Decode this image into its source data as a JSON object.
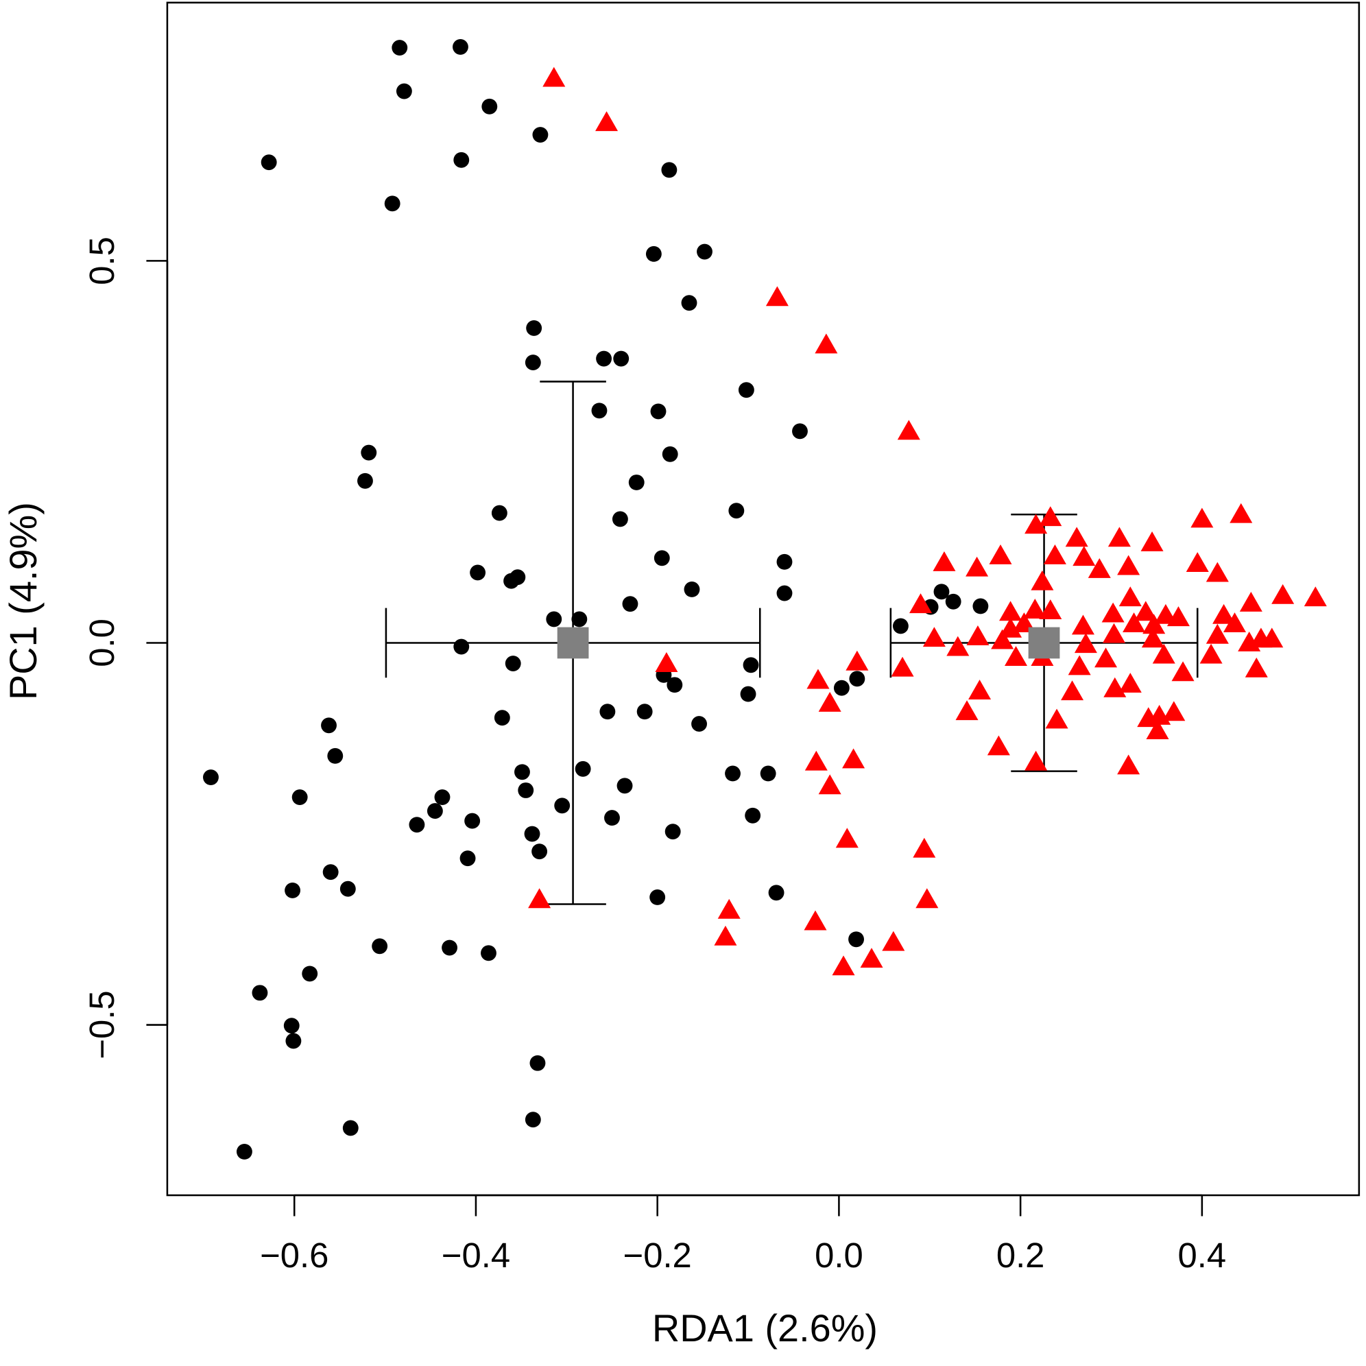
{
  "chart_data": {
    "type": "scatter",
    "xlabel": "RDA1 (2.6%)",
    "ylabel": "PC1 (4.9%)",
    "xlim": [
      -0.74,
      0.573
    ],
    "ylim": [
      -0.723,
      0.838
    ],
    "xticks": [
      {
        "value": -0.6,
        "label": "−0.6"
      },
      {
        "value": -0.4,
        "label": "−0.4"
      },
      {
        "value": -0.2,
        "label": "−0.2"
      },
      {
        "value": 0.0,
        "label": "0.0"
      },
      0.2,
      0.4
    ],
    "yticks": [
      {
        "value": -0.5,
        "label": "−0.5"
      },
      {
        "value": 0.0,
        "label": "0.0"
      },
      0.5
    ],
    "grid": false,
    "series": [
      {
        "color": "#000000",
        "marker": "circle",
        "x": [
          -0.484,
          -0.417,
          -0.479,
          -0.385,
          -0.329,
          -0.628,
          -0.416,
          -0.187,
          -0.492,
          -0.204,
          -0.148,
          -0.165,
          -0.336,
          -0.337,
          -0.259,
          -0.24,
          -0.102,
          -0.264,
          -0.199,
          -0.043,
          -0.518,
          -0.186,
          -0.522,
          -0.223,
          -0.374,
          -0.113,
          -0.241,
          -0.195,
          -0.06,
          -0.398,
          -0.361,
          -0.354,
          -0.162,
          -0.06,
          -0.23,
          -0.314,
          -0.286,
          0.068,
          0.101,
          0.113,
          0.126,
          0.156,
          -0.416,
          -0.359,
          -0.097,
          -0.193,
          -0.181,
          0.003,
          0.02,
          -0.1,
          -0.371,
          -0.255,
          -0.214,
          -0.154,
          -0.562,
          -0.555,
          -0.692,
          -0.349,
          -0.282,
          -0.117,
          -0.078,
          -0.345,
          -0.437,
          -0.594,
          -0.236,
          -0.305,
          -0.445,
          -0.465,
          -0.404,
          -0.095,
          -0.25,
          -0.338,
          -0.183,
          -0.33,
          -0.409,
          -0.56,
          -0.602,
          -0.541,
          -0.069,
          -0.2,
          0.019,
          -0.506,
          -0.429,
          -0.386,
          -0.583,
          -0.638,
          -0.603,
          -0.601,
          -0.332,
          -0.538,
          -0.337,
          -0.655
        ],
        "y": [
          0.779,
          0.78,
          0.722,
          0.702,
          0.665,
          0.629,
          0.632,
          0.619,
          0.575,
          0.509,
          0.512,
          0.445,
          0.412,
          0.367,
          0.372,
          0.372,
          0.331,
          0.304,
          0.303,
          0.277,
          0.249,
          0.247,
          0.212,
          0.21,
          0.17,
          0.173,
          0.162,
          0.111,
          0.106,
          0.092,
          0.081,
          0.086,
          0.07,
          0.065,
          0.051,
          0.031,
          0.031,
          0.022,
          0.047,
          0.067,
          0.054,
          0.048,
          -0.005,
          -0.027,
          -0.029,
          -0.042,
          -0.055,
          -0.059,
          -0.047,
          -0.067,
          -0.098,
          -0.09,
          -0.09,
          -0.106,
          -0.108,
          -0.148,
          -0.176,
          -0.169,
          -0.165,
          -0.171,
          -0.171,
          -0.193,
          -0.202,
          -0.202,
          -0.187,
          -0.213,
          -0.22,
          -0.238,
          -0.233,
          -0.226,
          -0.229,
          -0.25,
          -0.247,
          -0.273,
          -0.282,
          -0.3,
          -0.324,
          -0.322,
          -0.327,
          -0.333,
          -0.388,
          -0.397,
          -0.399,
          -0.406,
          -0.433,
          -0.458,
          -0.501,
          -0.521,
          -0.55,
          -0.635,
          -0.624,
          -0.666
        ]
      },
      {
        "color": "#ff0000",
        "marker": "triangle",
        "x": [
          -0.314,
          -0.256,
          -0.068,
          -0.014,
          0.077,
          0.217,
          0.233,
          0.4,
          0.443,
          0.345,
          0.262,
          0.309,
          0.238,
          0.27,
          0.319,
          0.116,
          0.152,
          0.178,
          0.224,
          0.287,
          0.395,
          0.417,
          0.321,
          0.454,
          0.489,
          0.525,
          0.09,
          0.189,
          0.216,
          0.233,
          0.338,
          0.36,
          0.374,
          0.302,
          0.424,
          0.189,
          0.204,
          0.269,
          0.325,
          0.347,
          0.105,
          0.131,
          0.153,
          0.18,
          0.272,
          0.303,
          0.346,
          0.417,
          0.436,
          0.452,
          0.465,
          0.477,
          0.195,
          0.224,
          0.265,
          0.294,
          0.358,
          0.41,
          0.46,
          0.379,
          0.07,
          -0.19,
          -0.023,
          0.02,
          0.155,
          0.257,
          0.304,
          0.321,
          -0.01,
          0.141,
          0.24,
          0.341,
          0.353,
          0.369,
          0.351,
          0.176,
          0.217,
          0.319,
          -0.025,
          0.016,
          -0.01,
          0.009,
          0.094,
          0.097,
          -0.33,
          -0.121,
          -0.125,
          -0.026,
          0.06,
          0.036,
          0.005
        ],
        "y": [
          0.739,
          0.681,
          0.452,
          0.39,
          0.277,
          0.154,
          0.164,
          0.162,
          0.168,
          0.131,
          0.137,
          0.137,
          0.114,
          0.112,
          0.1,
          0.105,
          0.098,
          0.114,
          0.08,
          0.096,
          0.104,
          0.091,
          0.059,
          0.052,
          0.062,
          0.059,
          0.05,
          0.04,
          0.043,
          0.042,
          0.04,
          0.036,
          0.033,
          0.038,
          0.036,
          0.018,
          0.025,
          0.022,
          0.025,
          0.023,
          0.006,
          -0.006,
          0.008,
          0.003,
          -0.002,
          0.011,
          0.005,
          0.01,
          0.025,
          0,
          0.005,
          0.005,
          -0.019,
          -0.019,
          -0.031,
          -0.021,
          -0.016,
          -0.016,
          -0.034,
          -0.039,
          -0.033,
          -0.027,
          -0.049,
          -0.025,
          -0.063,
          -0.064,
          -0.06,
          -0.054,
          -0.079,
          -0.09,
          -0.101,
          -0.099,
          -0.096,
          -0.091,
          -0.115,
          -0.136,
          -0.156,
          -0.161,
          -0.156,
          -0.153,
          -0.187,
          -0.257,
          -0.27,
          -0.336,
          -0.336,
          -0.35,
          -0.385,
          -0.365,
          -0.392,
          -0.414,
          -0.424
        ]
      }
    ],
    "centroids": {
      "color": "#808080",
      "marker": "square",
      "x": [
        -0.293,
        0.226
      ],
      "y": [
        0,
        0
      ],
      "xerr": [
        0.206,
        0.169
      ],
      "yerr": [
        0.342,
        0.168
      ]
    }
  }
}
